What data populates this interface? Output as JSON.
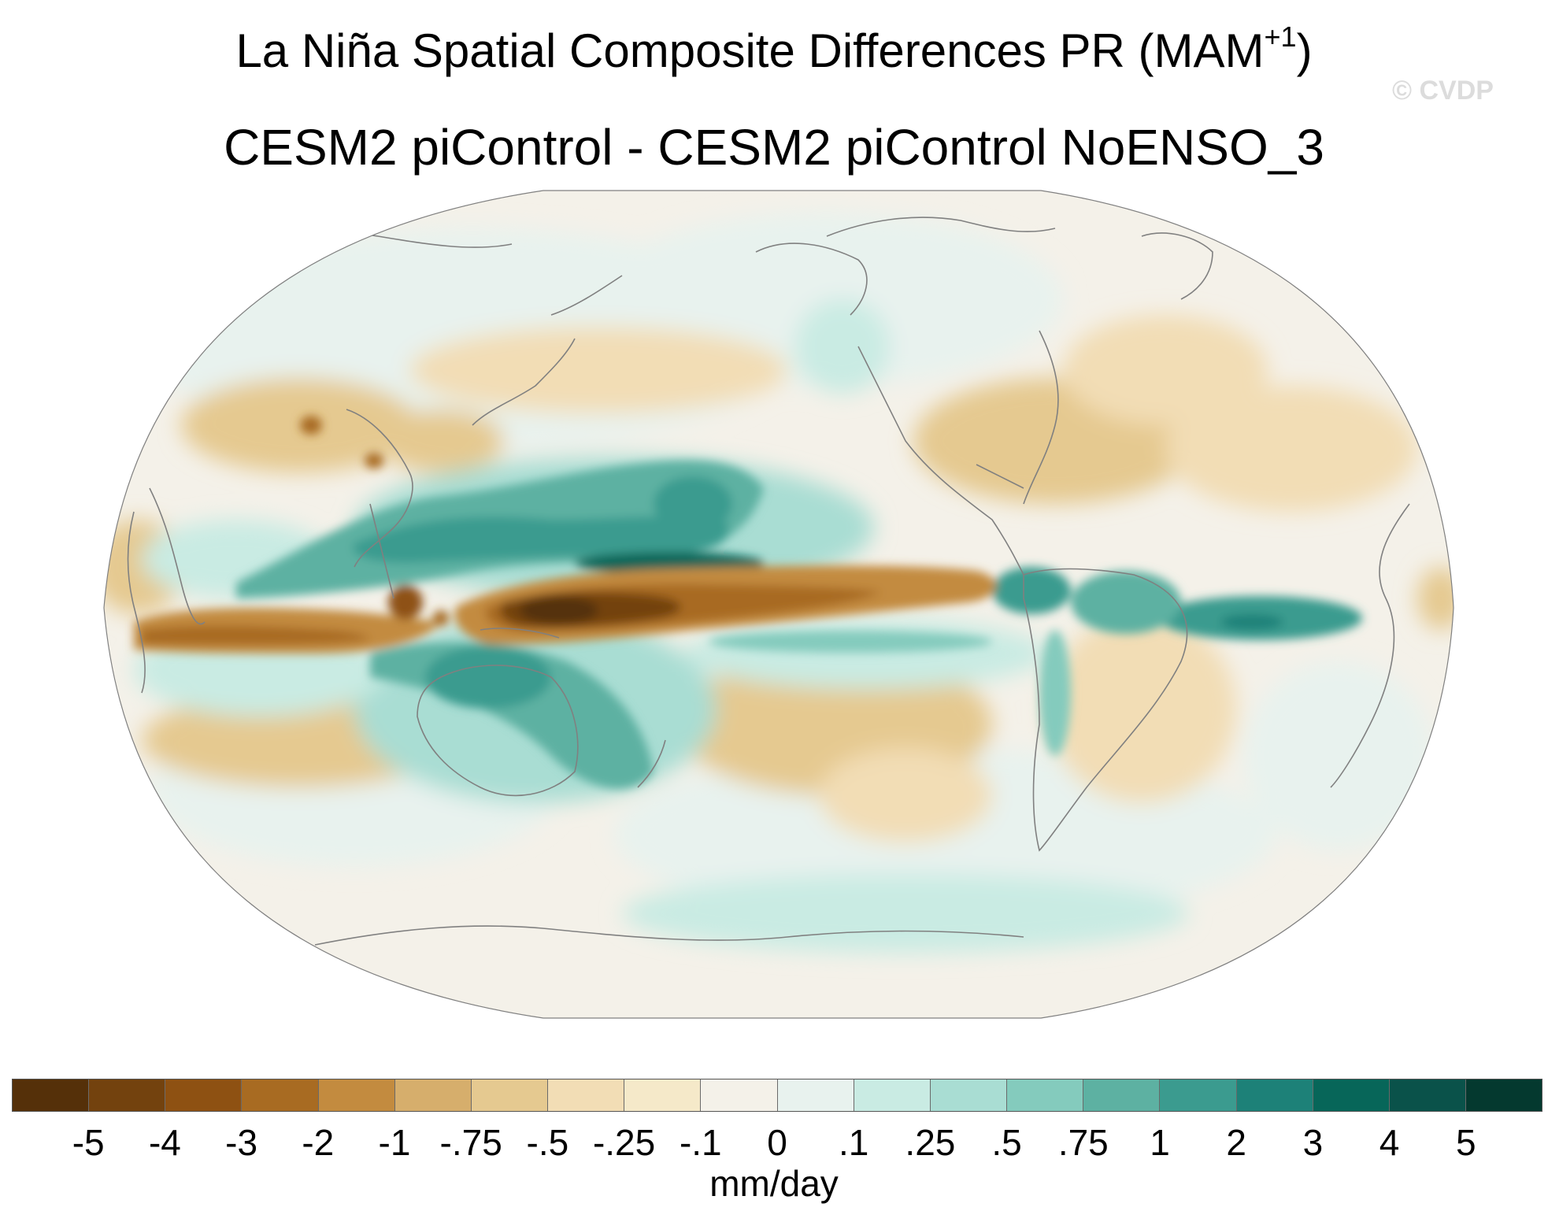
{
  "title": {
    "line1": "La Niña Spatial Composite Differences PR (MAM",
    "line1_superscript": "+1",
    "line1_close": ")",
    "line2": "CESM2 piControl - CESM2 piControl NoENSO_3"
  },
  "watermark": "© CVDP",
  "map": {
    "projection": "robinson",
    "center_longitude": 180,
    "variable": "PR",
    "season": "MAM+1",
    "coastline_color": "#808080",
    "features": [
      {
        "name": "central-equatorial-pacific-dry-tongue",
        "sign": "negative",
        "level": "-5"
      },
      {
        "name": "indian-ocean-equatorial-dry-band",
        "sign": "negative",
        "level": "-3"
      },
      {
        "name": "maritime-continent-dry-core",
        "sign": "negative",
        "level": "-4"
      },
      {
        "name": "north-west-pacific-wet-band",
        "sign": "positive",
        "level": "4"
      },
      {
        "name": "south-pacific-convergence-wet",
        "sign": "positive",
        "level": "2"
      },
      {
        "name": "australia-wet",
        "sign": "positive",
        "level": "1"
      },
      {
        "name": "equatorial-atlantic-wet",
        "sign": "positive",
        "level": "2"
      },
      {
        "name": "northern-south-america-wet",
        "sign": "positive",
        "level": "1"
      },
      {
        "name": "southeast-us-dry",
        "sign": "negative",
        "level": "-.75"
      },
      {
        "name": "subtropical-south-pacific-dry",
        "sign": "negative",
        "level": "-.5"
      }
    ]
  },
  "colorbar": {
    "colors": [
      "#553009",
      "#73420e",
      "#8e5112",
      "#a86b22",
      "#c38b3f",
      "#d6ae6c",
      "#e5c990",
      "#f2ddb5",
      "#f5e9c9",
      "#f4f1e9",
      "#e8f2ee",
      "#c9ebe3",
      "#a9ddd3",
      "#84cbbd",
      "#5db1a2",
      "#3b9b8f",
      "#1d8178",
      "#076659",
      "#0a524a",
      "#04392f"
    ],
    "labels": [
      "-5",
      "-4",
      "-3",
      "-2",
      "-1",
      "-.75",
      "-.5",
      "-.25",
      "-.1",
      "0",
      ".1",
      ".25",
      ".5",
      ".75",
      "1",
      "2",
      "3",
      "4",
      "5"
    ],
    "units": "mm/day"
  }
}
